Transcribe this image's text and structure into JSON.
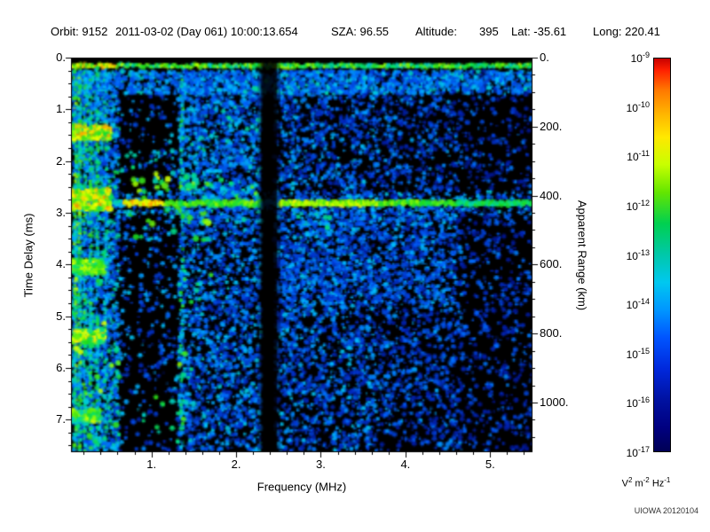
{
  "header": {
    "orbit": "Orbit: 9152",
    "datetime": "2011-03-02 (Day 061) 10:00:13.654",
    "sza": "SZA: 96.55",
    "altitude_label": "Altitude:",
    "altitude_value": "395",
    "lat": "Lat: -35.61",
    "long": "Long: 220.41"
  },
  "watermark": "UIOWA 20120104",
  "chart_data": {
    "type": "heatmap",
    "description": "Radar sounder ionogram: received spectral density (V^2 m^-2 Hz^-1, log color scale 1e-17 to 1e-9) vs sounding frequency and echo time delay. Strong horizontal ground echo at ~2.8 ms (~420 km apparent range) from ~0.6 to 5.5 MHz; electron plasma oscillation harmonic lines below ~0.6 MHz with bright bursts near 1.45, 2.8, 4.0, 5.4, 6.9 ms; ionospheric echo cusp merging into ground echo near 0.8-2.0 MHz; dark interference notch near 2.3-2.5 MHz; sparse dark region 0.6-1.3 MHz; blue noise speckle elsewhere fading toward high frequency.",
    "xlabel": "Frequency (MHz)",
    "ylabel_left": "Time Delay (ms)",
    "ylabel_right": "Apparent Range (km)",
    "x_range_mhz": [
      0.05,
      5.5
    ],
    "y_range_ms": [
      0,
      7.63
    ],
    "y_right_range_km": [
      0,
      1144
    ],
    "grid": false,
    "x_ticks": {
      "values": [
        1,
        2,
        3,
        4,
        5
      ],
      "labels": [
        "1.",
        "2.",
        "3.",
        "4.",
        "5."
      ]
    },
    "y_ticks_left": {
      "values": [
        0,
        1,
        2,
        3,
        4,
        5,
        6,
        7
      ],
      "labels": [
        "0.",
        "1.",
        "2.",
        "3.",
        "4.",
        "5.",
        "6.",
        "7."
      ]
    },
    "y_ticks_right": {
      "values": [
        0,
        200,
        400,
        600,
        800,
        1000
      ],
      "labels": [
        "0.",
        "200.",
        "400.",
        "600.",
        "800.",
        "1000."
      ]
    },
    "colorbar": {
      "scale": "log",
      "max_exponent": -9,
      "min_exponent": -17,
      "tick_exponents": [
        -9,
        -10,
        -11,
        -12,
        -13,
        -14,
        -15,
        -16,
        -17
      ],
      "unit_parts": [
        {
          "base": "V",
          "exp": "2"
        },
        {
          "base": "m",
          "exp": "-2"
        },
        {
          "base": "Hz",
          "exp": "-1"
        }
      ],
      "gradient_stops": [
        {
          "p": 0,
          "c": "#c80000"
        },
        {
          "p": 3,
          "c": "#ff2000"
        },
        {
          "p": 8,
          "c": "#ff7800"
        },
        {
          "p": 14,
          "c": "#ffb400"
        },
        {
          "p": 20,
          "c": "#ffe800"
        },
        {
          "p": 27,
          "c": "#c8ff00"
        },
        {
          "p": 34,
          "c": "#64e600"
        },
        {
          "p": 42,
          "c": "#00d050"
        },
        {
          "p": 50,
          "c": "#00c8aa"
        },
        {
          "p": 57,
          "c": "#00c8f0"
        },
        {
          "p": 64,
          "c": "#0096ff"
        },
        {
          "p": 71,
          "c": "#0055ff"
        },
        {
          "p": 79,
          "c": "#0028dc"
        },
        {
          "p": 87,
          "c": "#0011a0"
        },
        {
          "p": 94,
          "c": "#000080"
        },
        {
          "p": 100,
          "c": "#000055"
        }
      ]
    },
    "seed": 9152,
    "noise_regions": [
      {
        "name": "left-dense",
        "f": [
          0.06,
          0.62
        ],
        "t": [
          0.25,
          7.63
        ],
        "density": 0.1,
        "v": [
          0.25,
          0.62
        ]
      },
      {
        "name": "dark-patch",
        "f": [
          0.62,
          1.32
        ],
        "t": [
          0.6,
          7.63
        ],
        "density": 0.015,
        "v": [
          0.2,
          0.5
        ]
      },
      {
        "name": "mid-dense",
        "f": [
          1.32,
          2.3
        ],
        "t": [
          0.25,
          7.63
        ],
        "density": 0.065,
        "v": [
          0.22,
          0.52
        ]
      },
      {
        "name": "mid-right",
        "f": [
          2.45,
          3.65
        ],
        "t": [
          0.25,
          7.63
        ],
        "density": 0.055,
        "v": [
          0.2,
          0.5
        ]
      },
      {
        "name": "right",
        "f": [
          3.65,
          4.7
        ],
        "t": [
          0.25,
          7.63
        ],
        "density": 0.04,
        "v": [
          0.18,
          0.45
        ]
      },
      {
        "name": "far-right",
        "f": [
          4.7,
          5.5
        ],
        "t": [
          0.25,
          7.63
        ],
        "density": 0.022,
        "v": [
          0.16,
          0.4
        ]
      },
      {
        "name": "under-top-band",
        "f": [
          0.06,
          5.5
        ],
        "t": [
          0.26,
          0.7
        ],
        "density": 0.1,
        "v": [
          0.28,
          0.55
        ]
      },
      {
        "name": "below-echo-haze",
        "f": [
          2.5,
          4.6
        ],
        "t": [
          2.95,
          4.8
        ],
        "density": 0.035,
        "v": [
          0.25,
          0.5
        ]
      },
      {
        "name": "upper-mid-cyan",
        "f": [
          1.32,
          2.3
        ],
        "t": [
          0.8,
          3.2
        ],
        "density": 0.03,
        "v": [
          0.3,
          0.58
        ]
      }
    ],
    "plasma_lines": [
      {
        "f": 0.1,
        "t": [
          0.22,
          7.63
        ],
        "v": [
          0.4,
          0.78
        ],
        "w": 3,
        "gap": 0.12
      },
      {
        "f": 0.155,
        "t": [
          0.22,
          7.63
        ],
        "v": [
          0.4,
          0.75
        ],
        "w": 3,
        "gap": 0.15
      },
      {
        "f": 0.215,
        "t": [
          0.22,
          7.63
        ],
        "v": [
          0.38,
          0.72
        ],
        "w": 3,
        "gap": 0.18
      },
      {
        "f": 0.285,
        "t": [
          0.22,
          7.63
        ],
        "v": [
          0.35,
          0.7
        ],
        "w": 3,
        "gap": 0.2
      },
      {
        "f": 0.36,
        "t": [
          0.22,
          7.63
        ],
        "v": [
          0.35,
          0.68
        ],
        "w": 3,
        "gap": 0.25
      },
      {
        "f": 0.46,
        "t": [
          0.22,
          7.63
        ],
        "v": [
          0.33,
          0.65
        ],
        "w": 3,
        "gap": 0.3
      },
      {
        "f": 1.36,
        "t": [
          0.4,
          7.63
        ],
        "v": [
          0.35,
          0.68
        ],
        "w": 3,
        "gap": 0.45
      }
    ],
    "low_freq_bursts": [
      {
        "f": [
          0.05,
          0.52
        ],
        "t": [
          1.32,
          1.58
        ],
        "v": [
          0.6,
          0.92
        ]
      },
      {
        "f": [
          0.05,
          0.52
        ],
        "t": [
          2.55,
          2.95
        ],
        "v": [
          0.6,
          0.92
        ]
      },
      {
        "f": [
          0.05,
          0.45
        ],
        "t": [
          3.92,
          4.18
        ],
        "v": [
          0.55,
          0.85
        ]
      },
      {
        "f": [
          0.05,
          0.45
        ],
        "t": [
          5.28,
          5.52
        ],
        "v": [
          0.55,
          0.88
        ]
      },
      {
        "f": [
          0.05,
          0.4
        ],
        "t": [
          6.82,
          7.06
        ],
        "v": [
          0.5,
          0.8
        ]
      }
    ],
    "top_band": {
      "t_center": 0.16,
      "thickness": 0.1,
      "v": [
        0.5,
        0.78
      ]
    },
    "surface_echo": {
      "t_center": 2.82,
      "apparent_range_km": 420,
      "segments": [
        {
          "f": [
            0.55,
            0.68
          ],
          "v": 0.5
        },
        {
          "f": [
            0.68,
            1.15
          ],
          "v": 0.82
        },
        {
          "f": [
            1.15,
            2.3
          ],
          "v": 0.68
        },
        {
          "f": [
            2.3,
            2.5
          ],
          "v": 0.42
        },
        {
          "f": [
            2.5,
            3.7
          ],
          "v": 0.76
        },
        {
          "f": [
            3.7,
            4.6
          ],
          "v": 0.68
        },
        {
          "f": [
            4.6,
            5.5
          ],
          "v": 0.6
        }
      ]
    },
    "blob_clusters": [
      {
        "name": "cusp-above-echo",
        "f": [
          0.75,
          1.6
        ],
        "t": [
          2.2,
          2.72
        ],
        "n": 30,
        "v": [
          0.5,
          0.8
        ],
        "r": [
          2,
          4.5
        ]
      },
      {
        "name": "spread-below-echo",
        "f": [
          0.7,
          1.7
        ],
        "t": [
          2.9,
          3.55
        ],
        "n": 26,
        "v": [
          0.45,
          0.75
        ],
        "r": [
          2,
          4
        ]
      },
      {
        "name": "cusp-right",
        "f": [
          1.6,
          2.25
        ],
        "t": [
          2.35,
          2.75
        ],
        "n": 16,
        "v": [
          0.45,
          0.72
        ],
        "r": [
          2,
          3.5
        ]
      },
      {
        "name": "below-echo-mid",
        "f": [
          2.55,
          3.35
        ],
        "t": [
          3.0,
          3.45
        ],
        "n": 12,
        "v": [
          0.4,
          0.6
        ],
        "r": [
          2,
          3.5
        ]
      },
      {
        "name": "bottom-left-green",
        "f": [
          0.08,
          0.62
        ],
        "t": [
          5.0,
          7.5
        ],
        "n": 22,
        "v": [
          0.5,
          0.8
        ],
        "r": [
          2,
          4
        ]
      },
      {
        "name": "vertical-string-1p4MHz",
        "f": [
          1.28,
          1.5
        ],
        "t": [
          5.6,
          7.5
        ],
        "n": 18,
        "v": [
          0.5,
          0.75
        ],
        "r": [
          2,
          3.5
        ]
      },
      {
        "name": "mid-low-blobs",
        "f": [
          1.3,
          1.75
        ],
        "t": [
          4.1,
          4.75
        ],
        "n": 9,
        "v": [
          0.45,
          0.68
        ],
        "r": [
          2,
          3
        ]
      },
      {
        "name": "dark-patch-specks",
        "f": [
          0.65,
          1.3
        ],
        "t": [
          1.8,
          2.35
        ],
        "n": 10,
        "v": [
          0.4,
          0.65
        ],
        "r": [
          1.5,
          3
        ]
      },
      {
        "name": "upper-2MHz-specks",
        "f": [
          1.9,
          2.3
        ],
        "t": [
          0.3,
          1.3
        ],
        "n": 12,
        "v": [
          0.38,
          0.6
        ],
        "r": [
          1.5,
          3
        ]
      },
      {
        "name": "bottom-1MHz-green",
        "f": [
          0.85,
          1.3
        ],
        "t": [
          6.2,
          7.4
        ],
        "n": 10,
        "v": [
          0.45,
          0.7
        ],
        "r": [
          2,
          3.5
        ]
      }
    ],
    "notches": [
      {
        "name": "interference-notch-soft",
        "f": [
          2.26,
          2.52
        ],
        "alpha": 0.35
      },
      {
        "name": "interference-notch",
        "f": [
          2.3,
          2.48
        ],
        "alpha": 0.8
      }
    ]
  }
}
